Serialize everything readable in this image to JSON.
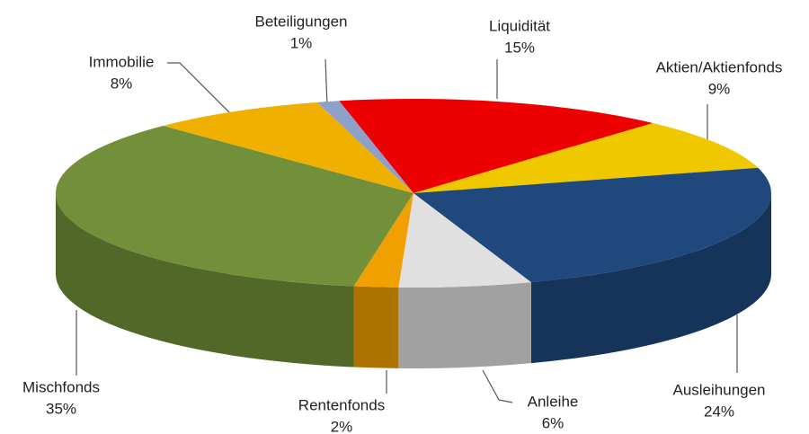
{
  "chart_data": {
    "type": "pie3d",
    "categories": [
      "Liquidität",
      "Aktien/Aktienfonds",
      "Ausleihungen",
      "Anleihe",
      "Rentenfonds",
      "Mischfonds",
      "Immobilie",
      "Beteiligungen"
    ],
    "values": [
      15,
      9,
      24,
      6,
      2,
      35,
      8,
      1
    ],
    "value_labels": [
      "15%",
      "9%",
      "24%",
      "6%",
      "2%",
      "35%",
      "8%",
      "1%"
    ],
    "colors": [
      "#ee0000",
      "#f0c800",
      "#1f497d",
      "#e0e0e0",
      "#f0a000",
      "#72903a",
      "#f0b000",
      "#8ea0c8"
    ]
  }
}
